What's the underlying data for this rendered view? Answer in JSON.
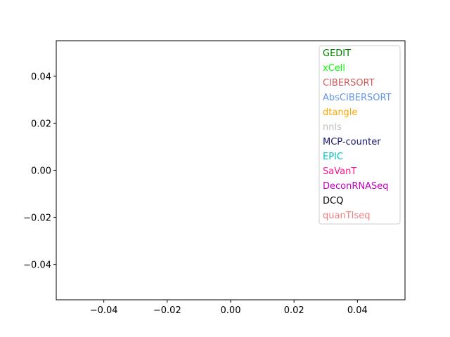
{
  "chart_data": {
    "type": "line",
    "title": "",
    "xlabel": "",
    "ylabel": "",
    "xlim": [
      -0.055,
      0.055
    ],
    "ylim": [
      -0.055,
      0.055
    ],
    "grid": false,
    "legend_position": "top-right",
    "legend_style": "text-only",
    "x_ticks": [
      {
        "value": -0.04,
        "label": "−0.04"
      },
      {
        "value": -0.02,
        "label": "−0.02"
      },
      {
        "value": 0.0,
        "label": "0.00"
      },
      {
        "value": 0.02,
        "label": "0.02"
      },
      {
        "value": 0.04,
        "label": "0.04"
      }
    ],
    "y_ticks": [
      {
        "value": 0.04,
        "label": "0.04"
      },
      {
        "value": 0.02,
        "label": "0.02"
      },
      {
        "value": 0.0,
        "label": "0.00"
      },
      {
        "value": -0.02,
        "label": "−0.02"
      },
      {
        "value": -0.04,
        "label": "−0.04"
      }
    ],
    "series": [
      {
        "name": "GEDIT",
        "color": "#008000",
        "values": []
      },
      {
        "name": "xCell",
        "color": "#00ff00",
        "values": []
      },
      {
        "name": "CIBERSORT",
        "color": "#cd5c5c",
        "values": []
      },
      {
        "name": "AbsCIBERSORT",
        "color": "#6495ed",
        "values": []
      },
      {
        "name": "dtangle",
        "color": "#ffa500",
        "values": []
      },
      {
        "name": "nnls",
        "color": "#c0c0c0",
        "values": []
      },
      {
        "name": "MCP-counter",
        "color": "#191970",
        "values": []
      },
      {
        "name": "EPIC",
        "color": "#00bfbf",
        "values": []
      },
      {
        "name": "SaVanT",
        "color": "#ff1493",
        "values": []
      },
      {
        "name": "DeconRNASeq",
        "color": "#c000c0",
        "values": []
      },
      {
        "name": "DCQ",
        "color": "#000000",
        "values": []
      },
      {
        "name": "quanTIseq",
        "color": "#f08080",
        "values": []
      }
    ]
  }
}
